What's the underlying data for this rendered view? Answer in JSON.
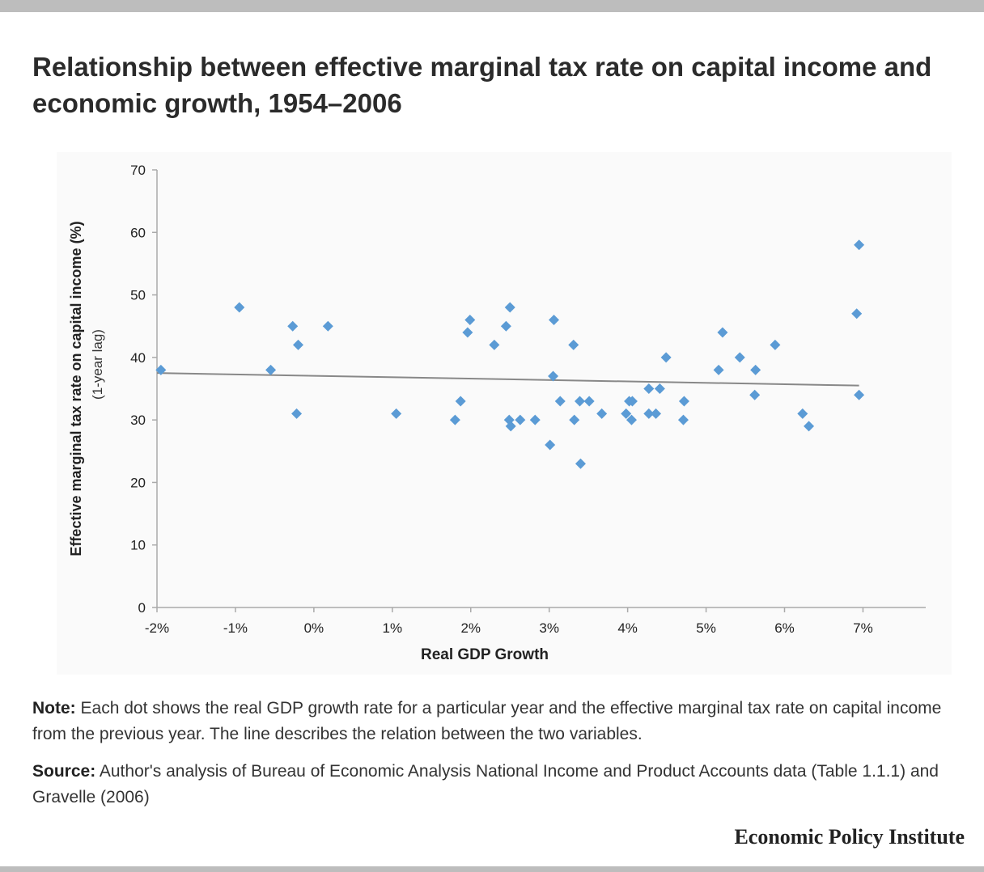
{
  "title": "Relationship between effective marginal tax rate on capital income and economic growth, 1954–2006",
  "note_label": "Note:",
  "note_text": "Each dot shows the real GDP growth rate for a particular year and the effective marginal tax rate on capital income from the previous year. The line describes the relation between the two variables.",
  "source_label": "Source:",
  "source_text": "Author's analysis of Bureau of Economic Analysis National Income and Product Accounts data (Table 1.1.1) and Gravelle (2006)",
  "brand": "Economic Policy Institute",
  "colors": {
    "point": "#5b9bd5",
    "trend": "#888888",
    "axis": "#aaaaaa",
    "top_bar": "#bdbdbd"
  },
  "chart_data": {
    "type": "scatter",
    "xlabel": "Real GDP Growth",
    "ylabel_line1": "Effective marginal tax rate  on capital income (%)",
    "ylabel_line2": "(1-year lag)",
    "xlim": [
      -2,
      7.8
    ],
    "ylim": [
      0,
      70
    ],
    "x_ticks": [
      -2,
      -1,
      0,
      1,
      2,
      3,
      4,
      5,
      6,
      7
    ],
    "x_tick_labels": [
      "-2%",
      "-1%",
      "0%",
      "1%",
      "2%",
      "3%",
      "4%",
      "5%",
      "6%",
      "7%"
    ],
    "y_ticks": [
      0,
      10,
      20,
      30,
      40,
      50,
      60,
      70
    ],
    "y_tick_labels": [
      "0",
      "10",
      "20",
      "30",
      "40",
      "50",
      "60",
      "70"
    ],
    "grid": false,
    "points": [
      {
        "x": -1.95,
        "y": 38
      },
      {
        "x": -0.95,
        "y": 48
      },
      {
        "x": -0.55,
        "y": 38
      },
      {
        "x": -0.27,
        "y": 45
      },
      {
        "x": -0.2,
        "y": 42
      },
      {
        "x": -0.22,
        "y": 31
      },
      {
        "x": 0.18,
        "y": 45
      },
      {
        "x": 1.05,
        "y": 31
      },
      {
        "x": 1.8,
        "y": 30
      },
      {
        "x": 1.87,
        "y": 33
      },
      {
        "x": 1.96,
        "y": 44
      },
      {
        "x": 1.99,
        "y": 46
      },
      {
        "x": 2.3,
        "y": 42
      },
      {
        "x": 2.45,
        "y": 45
      },
      {
        "x": 2.5,
        "y": 48
      },
      {
        "x": 2.49,
        "y": 30
      },
      {
        "x": 2.51,
        "y": 29
      },
      {
        "x": 2.63,
        "y": 30
      },
      {
        "x": 2.82,
        "y": 30
      },
      {
        "x": 3.01,
        "y": 26
      },
      {
        "x": 3.06,
        "y": 46
      },
      {
        "x": 3.05,
        "y": 37
      },
      {
        "x": 3.14,
        "y": 33
      },
      {
        "x": 3.31,
        "y": 42
      },
      {
        "x": 3.32,
        "y": 30
      },
      {
        "x": 3.39,
        "y": 33
      },
      {
        "x": 3.4,
        "y": 23
      },
      {
        "x": 3.51,
        "y": 33
      },
      {
        "x": 3.67,
        "y": 31
      },
      {
        "x": 3.98,
        "y": 31
      },
      {
        "x": 4.02,
        "y": 33
      },
      {
        "x": 4.06,
        "y": 33
      },
      {
        "x": 4.05,
        "y": 30
      },
      {
        "x": 4.27,
        "y": 35
      },
      {
        "x": 4.27,
        "y": 31
      },
      {
        "x": 4.36,
        "y": 31
      },
      {
        "x": 4.41,
        "y": 35
      },
      {
        "x": 4.49,
        "y": 40
      },
      {
        "x": 4.72,
        "y": 33
      },
      {
        "x": 4.71,
        "y": 30
      },
      {
        "x": 5.16,
        "y": 38
      },
      {
        "x": 5.21,
        "y": 44
      },
      {
        "x": 5.43,
        "y": 40
      },
      {
        "x": 5.63,
        "y": 38
      },
      {
        "x": 5.62,
        "y": 34
      },
      {
        "x": 5.88,
        "y": 42
      },
      {
        "x": 6.23,
        "y": 31
      },
      {
        "x": 6.31,
        "y": 29
      },
      {
        "x": 6.92,
        "y": 47
      },
      {
        "x": 6.95,
        "y": 58
      },
      {
        "x": 6.95,
        "y": 34
      }
    ],
    "trend_line": {
      "x": [
        -2,
        6.95
      ],
      "y": [
        37.5,
        35.5
      ]
    }
  }
}
